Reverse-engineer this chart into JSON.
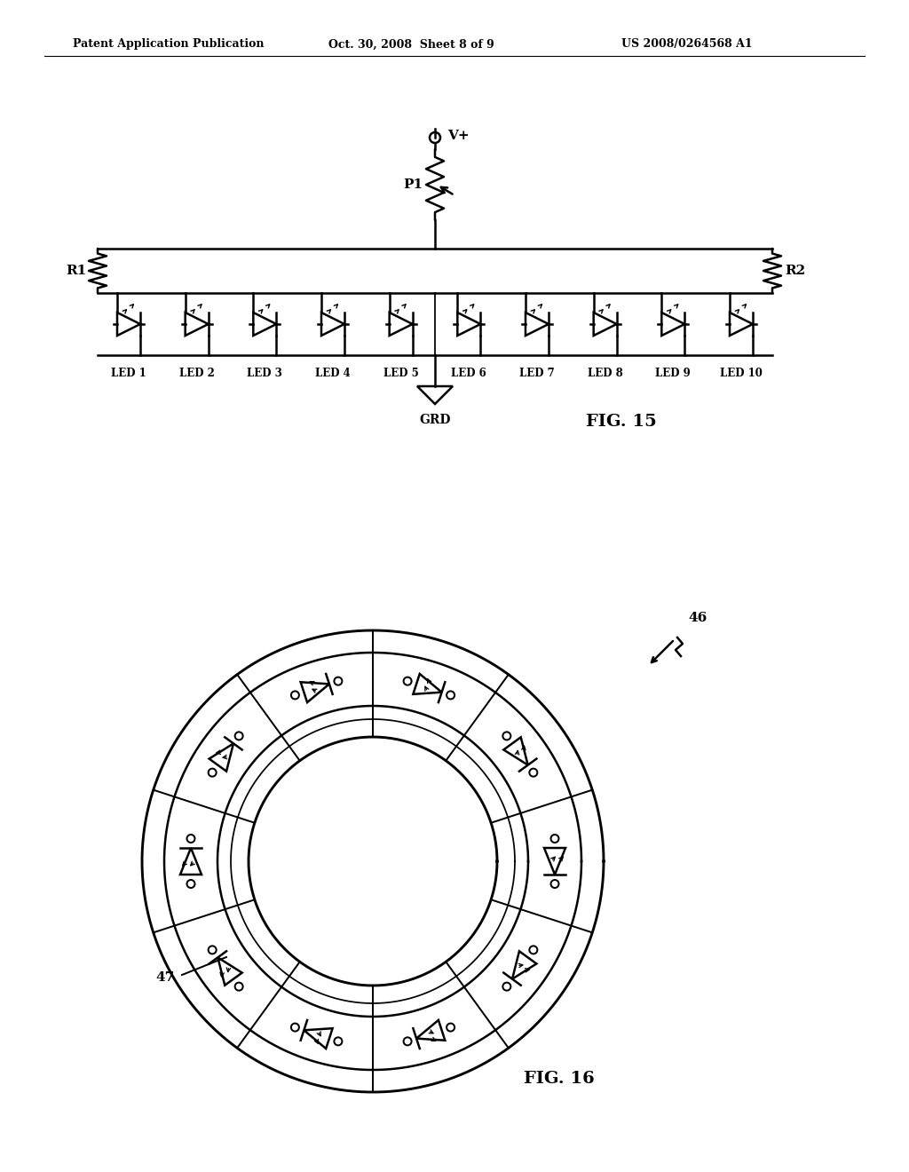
{
  "background_color": "#ffffff",
  "header_left": "Patent Application Publication",
  "header_mid": "Oct. 30, 2008  Sheet 8 of 9",
  "header_right": "US 2008/0264568 A1",
  "line_color": "#000000",
  "fig15_label": "FIG. 15",
  "fig16_label": "FIG. 16",
  "label_46": "46",
  "label_47": "47",
  "label_P1": "P1",
  "label_Vplus": "V+",
  "label_R1": "R1",
  "label_R2": "R2",
  "label_GRD": "GRD",
  "led_labels": [
    "LED 1",
    "LED 2",
    "LED 3",
    "LED 4",
    "LED 5",
    "LED 6",
    "LED 7",
    "LED 8",
    "LED 9",
    "LED 10"
  ],
  "lw": 1.8
}
